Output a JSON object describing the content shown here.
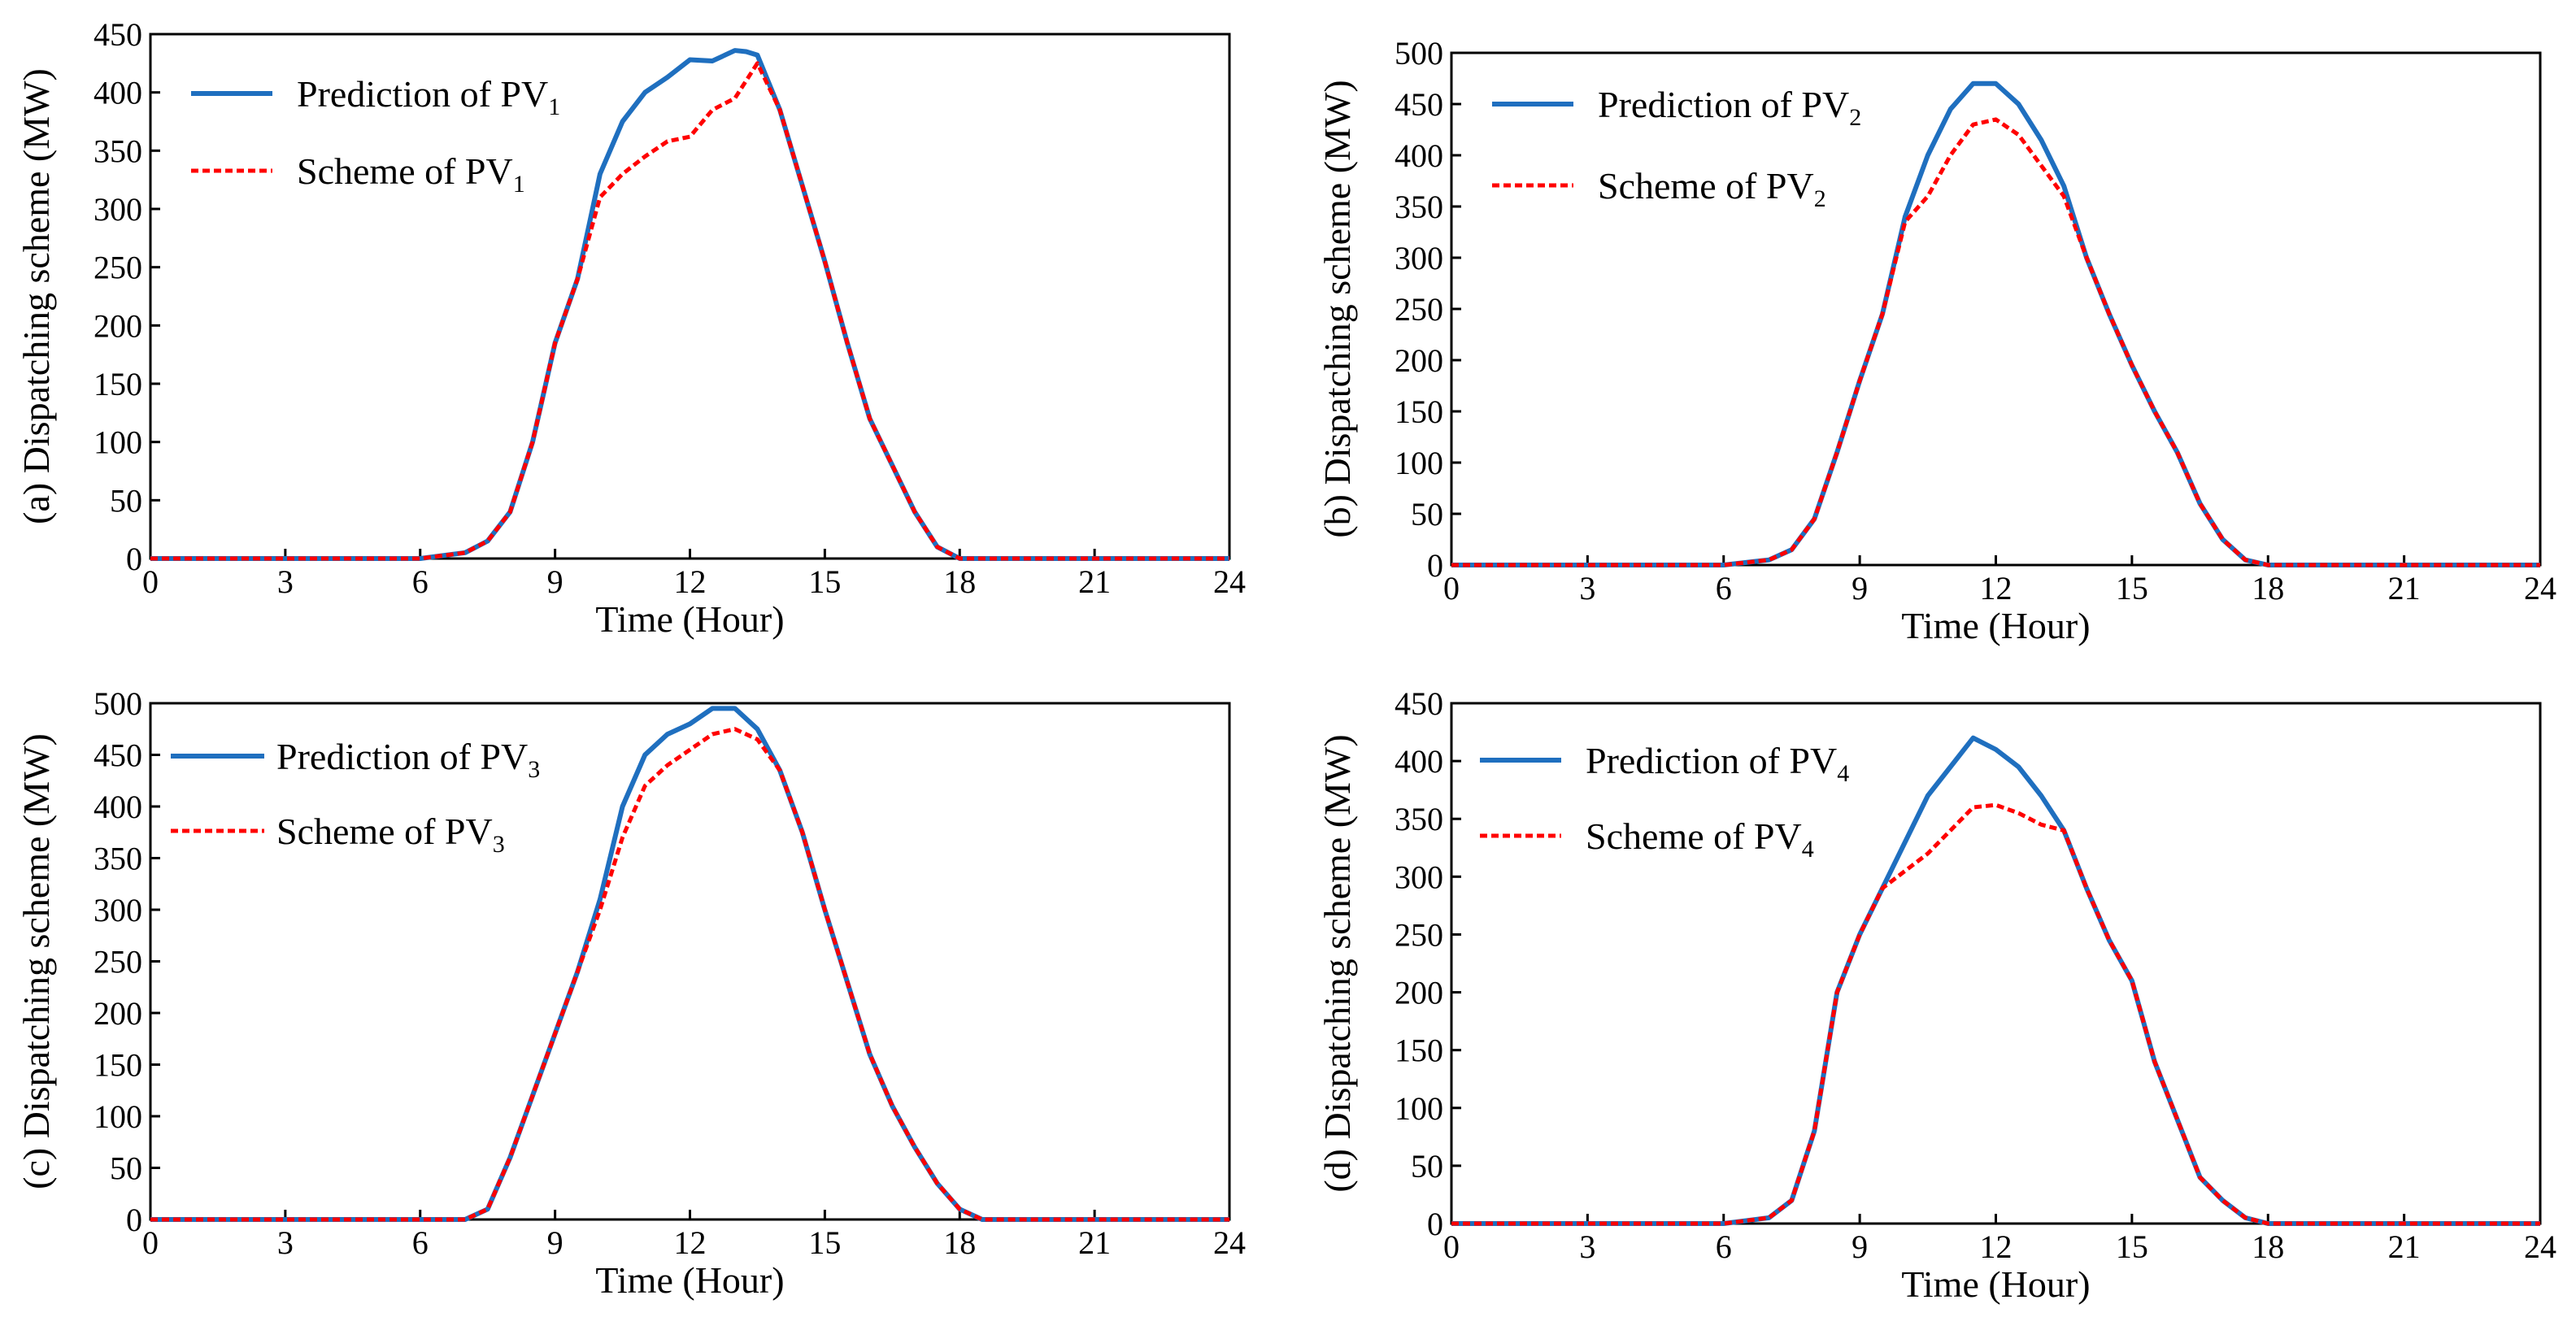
{
  "colors": {
    "prediction": "#1f6fbf",
    "scheme": "#ff0000",
    "axis": "#000000"
  },
  "chart_data": [
    {
      "type": "line",
      "panel": "(a)",
      "xlabel": "Time (Hour)",
      "ylabel": "(a) Dispatching scheme (MW)",
      "xlim": [
        0,
        24
      ],
      "ylim": [
        0,
        450
      ],
      "xticks": [
        0,
        3,
        6,
        9,
        12,
        15,
        18,
        21,
        24
      ],
      "yticks": [
        0,
        50,
        100,
        150,
        200,
        250,
        300,
        350,
        400,
        450
      ],
      "series": [
        {
          "name": "Prediction of PV",
          "subscript": "1",
          "style": "solid",
          "x": [
            0,
            6,
            7,
            7.5,
            8,
            8.5,
            9,
            9.5,
            10,
            10.5,
            11,
            11.5,
            12,
            12.5,
            13,
            13.25,
            13.5,
            14,
            14.5,
            15,
            15.5,
            16,
            16.5,
            17,
            17.5,
            18,
            18.5,
            21,
            24
          ],
          "y": [
            0,
            0,
            5,
            15,
            40,
            100,
            185,
            240,
            330,
            375,
            400,
            413,
            428,
            427,
            436,
            435,
            432,
            385,
            320,
            255,
            185,
            120,
            80,
            40,
            10,
            0,
            0,
            0,
            0
          ]
        },
        {
          "name": "Scheme of PV",
          "subscript": "1",
          "style": "dashed",
          "x": [
            0,
            6,
            7,
            7.5,
            8,
            8.5,
            9,
            9.5,
            10,
            10.5,
            11,
            11.5,
            12,
            12.5,
            13,
            13.25,
            13.5,
            14,
            14.5,
            15,
            15.5,
            16,
            16.5,
            17,
            17.5,
            18,
            18.5,
            21,
            24
          ],
          "y": [
            0,
            0,
            5,
            15,
            40,
            100,
            185,
            240,
            310,
            330,
            345,
            358,
            362,
            385,
            395,
            410,
            425,
            385,
            320,
            255,
            185,
            120,
            80,
            40,
            10,
            0,
            0,
            0,
            0
          ]
        }
      ]
    },
    {
      "type": "line",
      "panel": "(b)",
      "xlabel": "Time (Hour)",
      "ylabel": "(b) Dispatching scheme (MW)",
      "xlim": [
        0,
        24
      ],
      "ylim": [
        0,
        500
      ],
      "xticks": [
        0,
        3,
        6,
        9,
        12,
        15,
        18,
        21,
        24
      ],
      "yticks": [
        0,
        50,
        100,
        150,
        200,
        250,
        300,
        350,
        400,
        450,
        500
      ],
      "series": [
        {
          "name": "Prediction of PV",
          "subscript": "2",
          "style": "solid",
          "x": [
            0,
            6,
            7,
            7.5,
            8,
            8.5,
            9,
            9.5,
            10,
            10.5,
            11,
            11.5,
            12,
            12.5,
            13,
            13.5,
            14,
            14.5,
            15,
            15.5,
            16,
            16.5,
            17,
            17.5,
            18,
            24
          ],
          "y": [
            0,
            0,
            5,
            15,
            45,
            110,
            180,
            245,
            340,
            400,
            445,
            470,
            470,
            450,
            415,
            370,
            300,
            245,
            195,
            150,
            110,
            60,
            25,
            5,
            0,
            0
          ]
        },
        {
          "name": "Scheme of PV",
          "subscript": "2",
          "style": "dashed",
          "x": [
            0,
            6,
            7,
            7.5,
            8,
            8.5,
            9,
            9.5,
            10,
            10.5,
            11,
            11.5,
            12,
            12.5,
            13,
            13.5,
            14,
            14.5,
            15,
            15.5,
            16,
            16.5,
            17,
            17.5,
            18,
            24
          ],
          "y": [
            0,
            0,
            5,
            15,
            45,
            110,
            180,
            245,
            335,
            360,
            400,
            430,
            435,
            420,
            390,
            360,
            300,
            245,
            195,
            150,
            110,
            60,
            25,
            5,
            0,
            0
          ]
        }
      ]
    },
    {
      "type": "line",
      "panel": "(c)",
      "xlabel": "Time (Hour)",
      "ylabel": "(c) Dispatching scheme (MW)",
      "xlim": [
        0,
        24
      ],
      "ylim": [
        0,
        500
      ],
      "xticks": [
        0,
        3,
        6,
        9,
        12,
        15,
        18,
        21,
        24
      ],
      "yticks": [
        0,
        50,
        100,
        150,
        200,
        250,
        300,
        350,
        400,
        450,
        500
      ],
      "series": [
        {
          "name": "Prediction of PV",
          "subscript": "3",
          "style": "solid",
          "x": [
            0,
            6,
            7,
            7.5,
            8,
            8.5,
            9,
            9.5,
            10,
            10.5,
            11,
            11.5,
            12,
            12.5,
            13,
            13.5,
            14,
            14.5,
            15,
            15.5,
            16,
            16.5,
            17,
            17.5,
            18,
            18.5,
            24
          ],
          "y": [
            0,
            0,
            0,
            10,
            60,
            120,
            180,
            240,
            310,
            400,
            450,
            470,
            480,
            495,
            495,
            475,
            435,
            375,
            300,
            230,
            160,
            110,
            70,
            35,
            10,
            0,
            0
          ]
        },
        {
          "name": "Scheme of PV",
          "subscript": "3",
          "style": "dashed",
          "x": [
            0,
            6,
            7,
            7.5,
            8,
            8.5,
            9,
            9.5,
            10,
            10.5,
            11,
            11.5,
            12,
            12.5,
            13,
            13.5,
            14,
            14.5,
            15,
            15.5,
            16,
            16.5,
            17,
            17.5,
            18,
            18.5,
            24
          ],
          "y": [
            0,
            0,
            0,
            10,
            60,
            120,
            180,
            240,
            300,
            370,
            420,
            440,
            455,
            470,
            475,
            465,
            435,
            375,
            300,
            230,
            160,
            110,
            70,
            35,
            10,
            0,
            0
          ]
        }
      ]
    },
    {
      "type": "line",
      "panel": "(d)",
      "xlabel": "Time (Hour)",
      "ylabel": "(d) Dispatching scheme (MW)",
      "xlim": [
        0,
        24
      ],
      "ylim": [
        0,
        450
      ],
      "xticks": [
        0,
        3,
        6,
        9,
        12,
        15,
        18,
        21,
        24
      ],
      "yticks": [
        0,
        50,
        100,
        150,
        200,
        250,
        300,
        350,
        400,
        450
      ],
      "series": [
        {
          "name": "Prediction of PV",
          "subscript": "4",
          "style": "solid",
          "x": [
            0,
            6,
            7,
            7.5,
            8,
            8.5,
            9,
            9.5,
            10,
            10.5,
            11,
            11.5,
            12,
            12.5,
            13,
            13.5,
            14,
            14.5,
            15,
            15.5,
            16,
            16.5,
            17,
            17.5,
            18,
            24
          ],
          "y": [
            0,
            0,
            5,
            20,
            80,
            200,
            250,
            290,
            330,
            370,
            395,
            420,
            410,
            395,
            370,
            340,
            290,
            245,
            210,
            140,
            90,
            40,
            20,
            5,
            0,
            0
          ]
        },
        {
          "name": "Scheme of PV",
          "subscript": "4",
          "style": "dashed",
          "x": [
            0,
            6,
            7,
            7.5,
            8,
            8.5,
            9,
            9.5,
            10,
            10.5,
            11,
            11.5,
            12,
            12.5,
            13,
            13.5,
            14,
            14.5,
            15,
            15.5,
            16,
            16.5,
            17,
            17.5,
            18,
            24
          ],
          "y": [
            0,
            0,
            5,
            20,
            80,
            200,
            250,
            290,
            305,
            320,
            340,
            360,
            362,
            355,
            345,
            340,
            290,
            245,
            210,
            140,
            90,
            40,
            20,
            5,
            0,
            0
          ]
        }
      ]
    }
  ]
}
